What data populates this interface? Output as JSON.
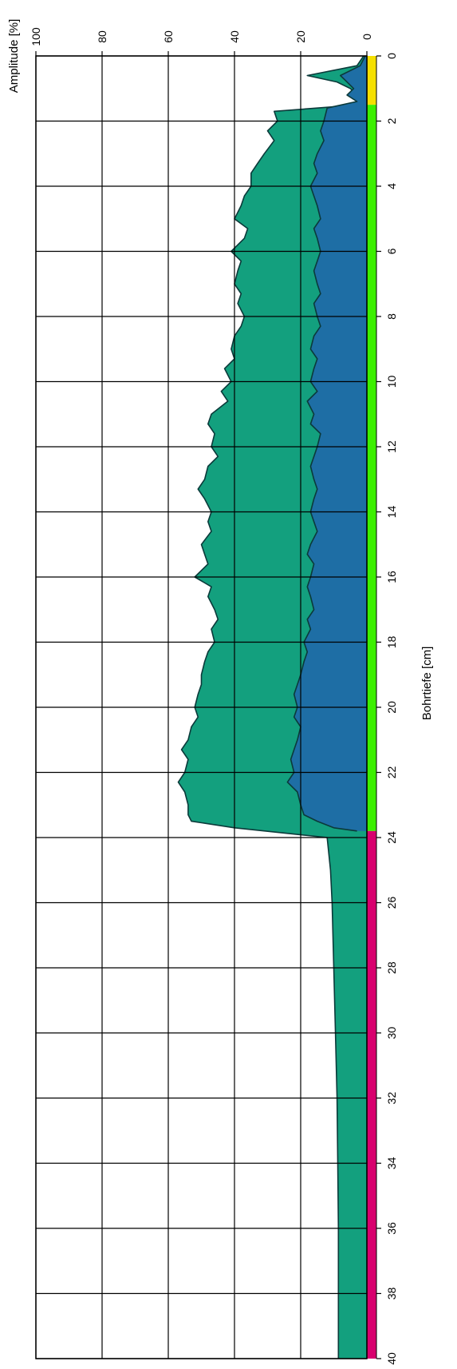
{
  "chart_data": {
    "type": "area",
    "orientation": "rotated-90",
    "xlabel": "Bohrtiefe [cm]",
    "ylabel": "Amplitude [%]",
    "xlim": [
      0,
      40
    ],
    "ylim": [
      0,
      100
    ],
    "x_ticks": [
      0,
      2,
      4,
      6,
      8,
      10,
      12,
      14,
      16,
      18,
      20,
      22,
      24,
      26,
      28,
      30,
      32,
      34,
      36,
      38,
      40
    ],
    "y_ticks": [
      0,
      20,
      40,
      60,
      80,
      100
    ],
    "grid": true,
    "colors": {
      "upper_fill": "#13a07e",
      "lower_fill": "#1e6ea5",
      "line": "#0b3a3a",
      "band_yellow": "#f5e000",
      "band_green": "#3cf000",
      "band_magenta": "#d8006e"
    },
    "depth_bands": [
      {
        "from": 0,
        "to": 1.5,
        "color": "#f5e000"
      },
      {
        "from": 1.5,
        "to": 23.8,
        "color": "#3cf000"
      },
      {
        "from": 23.8,
        "to": 40,
        "color": "#d8006e"
      }
    ],
    "series": [
      {
        "x": [
          0,
          0.3,
          0.6,
          0.8,
          1.0,
          1.2,
          1.5,
          1.7,
          2.0,
          2.3,
          2.6,
          3.0,
          3.3,
          3.6,
          4.0,
          4.3,
          4.6,
          5.0,
          5.3,
          5.6,
          6.0,
          6.3,
          6.6,
          7.0,
          7.3,
          7.6,
          8.0,
          8.3,
          8.6,
          9.0,
          9.3,
          9.6,
          10.0,
          10.3,
          10.6,
          11.0,
          11.3,
          11.6,
          12.0,
          12.3,
          12.6,
          13.0,
          13.3,
          13.6,
          14.0,
          14.3,
          14.6,
          15.0,
          15.3,
          15.6,
          16.0,
          16.3,
          16.6,
          17.0,
          17.3,
          17.6,
          18.0,
          18.3,
          18.6,
          19.0,
          19.3,
          19.6,
          20.0,
          20.3,
          20.6,
          21.0,
          21.3,
          21.6,
          22.0,
          22.3,
          22.6,
          23.0,
          23.3,
          23.5,
          23.7,
          24.0,
          25,
          26,
          28,
          30,
          32,
          34,
          36,
          38,
          39.5,
          40
        ],
        "values": [
          1,
          3,
          18,
          9,
          5,
          3,
          2,
          28,
          27,
          30,
          28,
          31,
          33,
          35,
          35,
          37,
          38,
          40,
          36,
          37,
          41,
          38,
          39,
          40,
          38,
          39,
          37,
          38,
          40,
          41,
          40,
          43,
          41,
          44,
          42,
          47,
          48,
          46,
          47,
          45,
          48,
          49,
          51,
          49,
          47,
          48,
          47,
          50,
          49,
          48,
          52,
          47,
          48,
          46,
          45,
          47,
          46,
          48,
          49,
          50,
          50,
          51,
          52,
          51,
          53,
          54,
          56,
          54,
          55,
          57,
          55,
          54,
          54,
          53,
          40,
          12,
          11,
          10.5,
          10,
          9.5,
          9,
          8.8,
          8.6,
          8.6,
          8.6,
          8.6
        ]
      },
      {
        "x": [
          0,
          0.3,
          0.6,
          0.8,
          1.0,
          1.2,
          1.4,
          1.6,
          2.0,
          2.3,
          2.6,
          3.0,
          3.3,
          3.6,
          4.0,
          4.3,
          4.6,
          5.0,
          5.3,
          5.6,
          6.0,
          6.3,
          6.6,
          7.0,
          7.3,
          7.6,
          8.0,
          8.3,
          8.6,
          9.0,
          9.3,
          9.6,
          10.0,
          10.3,
          10.6,
          11.0,
          11.3,
          11.6,
          12.0,
          12.3,
          12.6,
          13.0,
          13.3,
          13.6,
          14.0,
          14.3,
          14.6,
          15.0,
          15.3,
          15.6,
          16.0,
          16.3,
          16.6,
          17.0,
          17.3,
          17.6,
          18.0,
          18.3,
          18.6,
          19.0,
          19.3,
          19.6,
          20.0,
          20.3,
          20.6,
          21.0,
          21.3,
          21.6,
          22.0,
          22.3,
          22.6,
          23.0,
          23.3,
          23.5,
          23.7,
          23.8
        ],
        "values": [
          0.5,
          2,
          8,
          6,
          4,
          6,
          3,
          12,
          13,
          14,
          13,
          15,
          16,
          15,
          17,
          16,
          15,
          14,
          16,
          15,
          14,
          15,
          16,
          15,
          14,
          16,
          15,
          14,
          16,
          17,
          15,
          16,
          17,
          15,
          18,
          16,
          17,
          14,
          15,
          16,
          17,
          16,
          15,
          16,
          17,
          16,
          15,
          17,
          18,
          16,
          17,
          18,
          17,
          16,
          18,
          17,
          19,
          18,
          19,
          20,
          21,
          22,
          21,
          22,
          20,
          21,
          22,
          23,
          22,
          24,
          21,
          20,
          19,
          15,
          10,
          3
        ]
      }
    ]
  }
}
